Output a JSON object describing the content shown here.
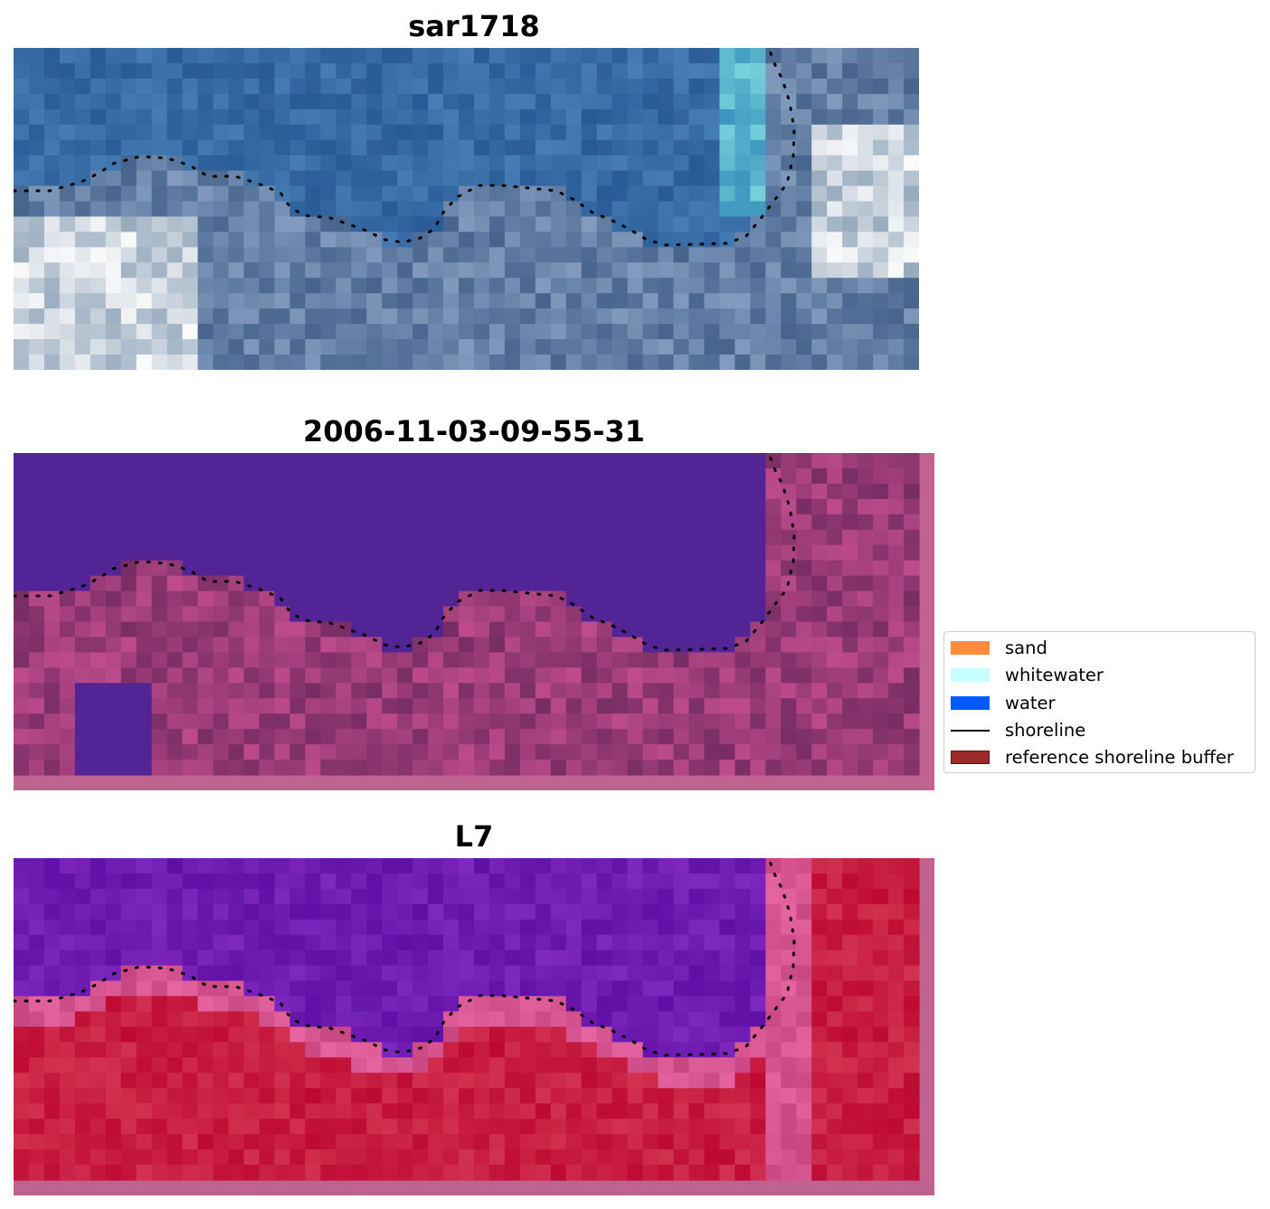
{
  "panels": [
    {
      "title": "sar1718",
      "kind": "rgb"
    },
    {
      "title": "2006-11-03-09-55-31",
      "kind": "classified"
    },
    {
      "title": "L7",
      "kind": "mndwi"
    }
  ],
  "legend": {
    "items": [
      {
        "label": "sand",
        "color": "#ff8c3c",
        "icon": "swatch"
      },
      {
        "label": "whitewater",
        "color": "#c8ffff",
        "icon": "swatch"
      },
      {
        "label": "water",
        "color": "#005aff",
        "icon": "swatch"
      },
      {
        "label": "shoreline",
        "color": "#000000",
        "icon": "line"
      },
      {
        "label": "reference shoreline buffer",
        "color": "#9b2b2b",
        "icon": "swatch"
      }
    ]
  },
  "colors": {
    "classified_water": "#532496",
    "buffer_border": "#c0628f",
    "mndwi_low": "#6a0aa8",
    "mndwi_high": "#c8002a"
  }
}
